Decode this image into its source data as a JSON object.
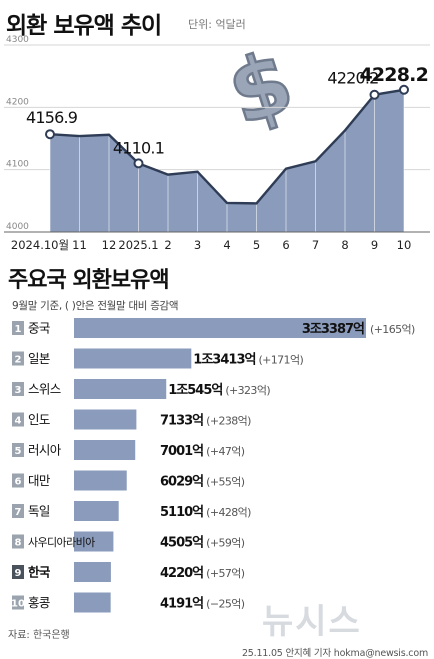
{
  "header": {
    "title": "외환 보유액 추이",
    "unit": "단위: 억달러"
  },
  "colors": {
    "area_fill": "#8a9bbb",
    "line": "#2f3c55",
    "bar": "#8a9bbb",
    "badge_default": "#9aa3ae",
    "badge_korea": "#4a525c",
    "grid": "#d6d6d6",
    "dollar_sign": "#9aa5b8"
  },
  "icons": [
    "dollar-sign-icon"
  ],
  "section2": {
    "title": "주요국 외환보유액",
    "note": "9월말 기준, ( )안은 전월말 대비 증감액"
  },
  "footer": {
    "source": "자료: 한국은행",
    "credit": "25.11.05 안지혜 기자 hokma@newsis.com",
    "watermark": "뉴시스"
  },
  "chart_data": [
    {
      "type": "area",
      "title": "외환 보유액 추이",
      "ylabel": "단위: 억달러",
      "ylim": [
        4000,
        4300
      ],
      "yticks": [
        "4300",
        "4200",
        "4100",
        "4000"
      ],
      "grid": true,
      "categories": [
        "2024.10월",
        "11",
        "12",
        "2025.1",
        "2",
        "3",
        "4",
        "5",
        "6",
        "7",
        "8",
        "9",
        "10"
      ],
      "values": [
        4156.9,
        4153.9,
        4156.0,
        4110.1,
        4092.1,
        4096.7,
        4046.7,
        4045.9,
        4101.6,
        4113.4,
        4163.0,
        4220.2,
        4228.2
      ],
      "annotations": [
        {
          "index": 0,
          "label": "4156.9"
        },
        {
          "index": 3,
          "label": "4110.1"
        },
        {
          "index": 11,
          "label": "4220.2"
        },
        {
          "index": 12,
          "label": "4228.2"
        }
      ]
    },
    {
      "type": "bar",
      "orientation": "horizontal",
      "title": "주요국 외환보유액",
      "note": "9월말 기준, ( )안은 전월말 대비 증감액",
      "ranks": [
        "1",
        "2",
        "3",
        "4",
        "5",
        "6",
        "7",
        "8",
        "9",
        "10"
      ],
      "categories": [
        "중국",
        "일본",
        "스위스",
        "인도",
        "러시아",
        "대만",
        "독일",
        "사우디아라비아",
        "한국",
        "홍콩"
      ],
      "values": [
        33387,
        13413,
        10545,
        7133,
        7001,
        6029,
        5110,
        4505,
        4220,
        4191
      ],
      "value_labels": [
        "3조3387억",
        "1조3413억",
        "1조545억",
        "7133억",
        "7001억",
        "6029억",
        "5110억",
        "4505억",
        "4220억",
        "4191억"
      ],
      "change_labels": [
        "(+165억)",
        "(+171억)",
        "(+323억)",
        "(+238억)",
        "(+47억)",
        "(+55억)",
        "(+428억)",
        "(+59억)",
        "(+57억)",
        "(−25억)"
      ],
      "highlight": "한국"
    }
  ]
}
